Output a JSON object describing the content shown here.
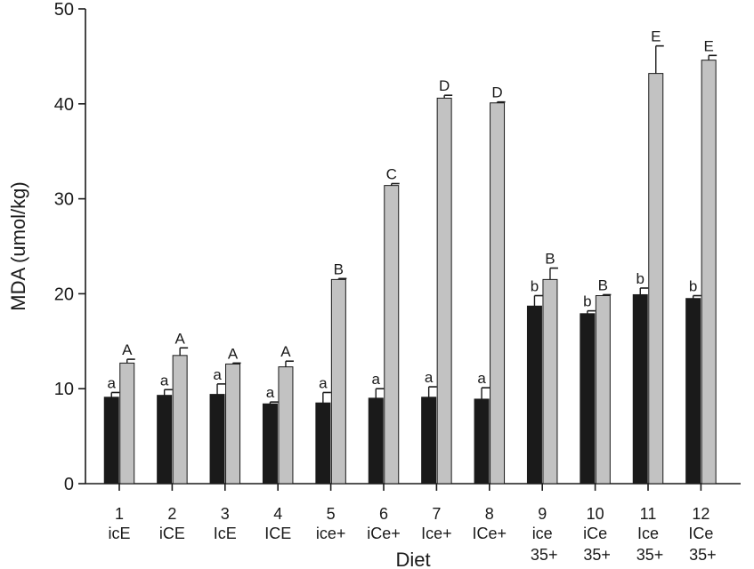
{
  "chart_data": {
    "type": "bar",
    "xlabel": "Diet",
    "ylabel": "MDA (umol/kg)",
    "ylim": [
      0,
      50
    ],
    "yticks": [
      0,
      10,
      20,
      30,
      40,
      50
    ],
    "grid": false,
    "categories": [
      {
        "num": "1",
        "line2": "icE",
        "line3": ""
      },
      {
        "num": "2",
        "line2": "iCE",
        "line3": ""
      },
      {
        "num": "3",
        "line2": "IcE",
        "line3": ""
      },
      {
        "num": "4",
        "line2": "ICE",
        "line3": ""
      },
      {
        "num": "5",
        "line2": "ice+",
        "line3": ""
      },
      {
        "num": "6",
        "line2": "iCe+",
        "line3": ""
      },
      {
        "num": "7",
        "line2": "Ice+",
        "line3": ""
      },
      {
        "num": "8",
        "line2": "ICe+",
        "line3": ""
      },
      {
        "num": "9",
        "line2": "ice",
        "line3": "35+"
      },
      {
        "num": "10",
        "line2": "iCe",
        "line3": "35+"
      },
      {
        "num": "11",
        "line2": "Ice",
        "line3": "35+"
      },
      {
        "num": "12",
        "line2": "ICe",
        "line3": "35+"
      }
    ],
    "series": [
      {
        "color": "#1a1a1a",
        "values": [
          9.1,
          9.3,
          9.4,
          8.4,
          8.5,
          9.0,
          9.1,
          8.9,
          18.7,
          17.9,
          19.9,
          19.5
        ],
        "errors": [
          0.5,
          0.6,
          1.1,
          0.2,
          1.1,
          1.0,
          1.1,
          1.2,
          1.1,
          0.3,
          0.7,
          0.3
        ],
        "labels": [
          "a",
          "a",
          "a",
          "a",
          "a",
          "a",
          "a",
          "a",
          "b",
          "b",
          "b",
          "b"
        ]
      },
      {
        "color": "#c2c2c2",
        "values": [
          12.7,
          13.5,
          12.6,
          12.3,
          21.5,
          31.4,
          40.6,
          40.1,
          21.5,
          19.8,
          43.2,
          44.6
        ],
        "errors": [
          0.4,
          0.8,
          0.1,
          0.6,
          0.1,
          0.2,
          0.3,
          0.1,
          1.2,
          0.1,
          2.9,
          0.5
        ],
        "labels": [
          "A",
          "A",
          "A",
          "A",
          "B",
          "C",
          "D",
          "D",
          "B",
          "B",
          "E",
          "E"
        ]
      }
    ]
  }
}
